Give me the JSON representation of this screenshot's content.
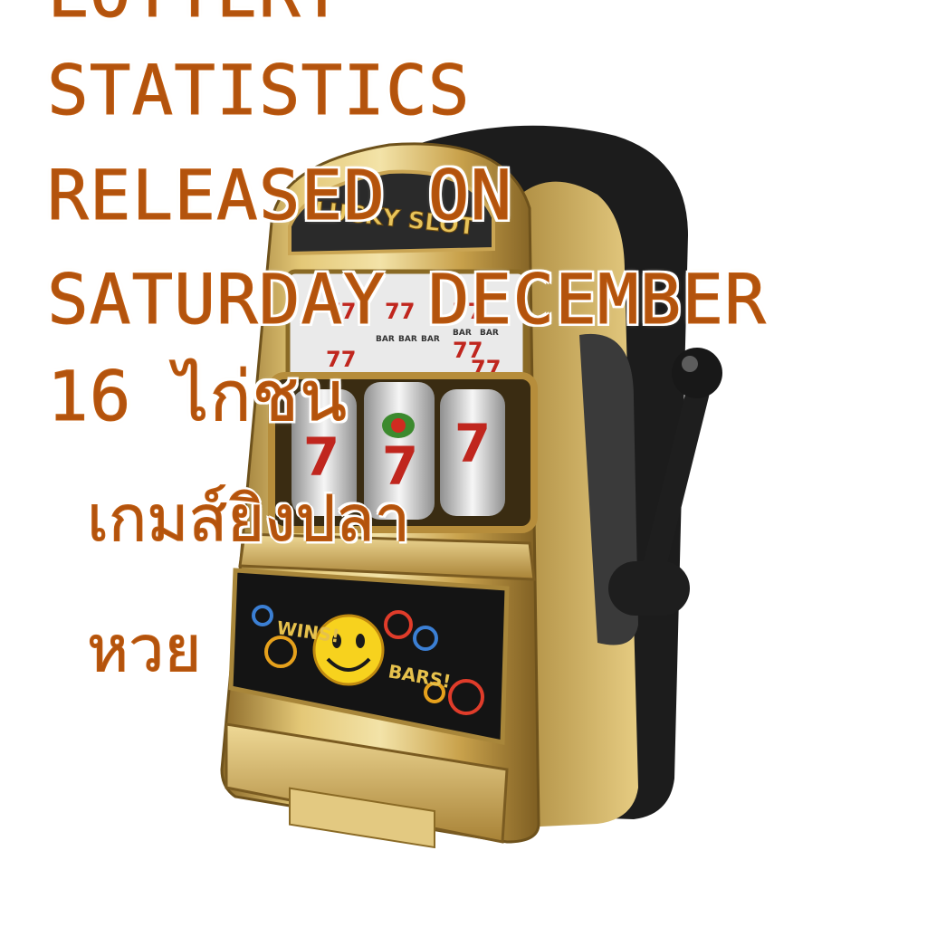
{
  "headline": {
    "lines": [
      "LOTTERY",
      "STATISTICS",
      "RELEASED ON",
      "SATURDAY DECEMBER",
      "16 ไก่ชน"
    ],
    "thai_lines": [
      "เกมส์ยิงปลา",
      "หวย"
    ],
    "color": "#b3530d"
  },
  "image": {
    "subject": "slot-machine",
    "logo_text": "LUCKY SLOT",
    "panel_text_left": "WINS!",
    "panel_text_right": "BARS!",
    "reel_symbol": "7",
    "mini_reel_label": "BAR",
    "colors": {
      "gold": "#d6b35c",
      "gold_dark": "#8a6a25",
      "black": "#1c1c1c",
      "red": "#c0261e"
    }
  }
}
